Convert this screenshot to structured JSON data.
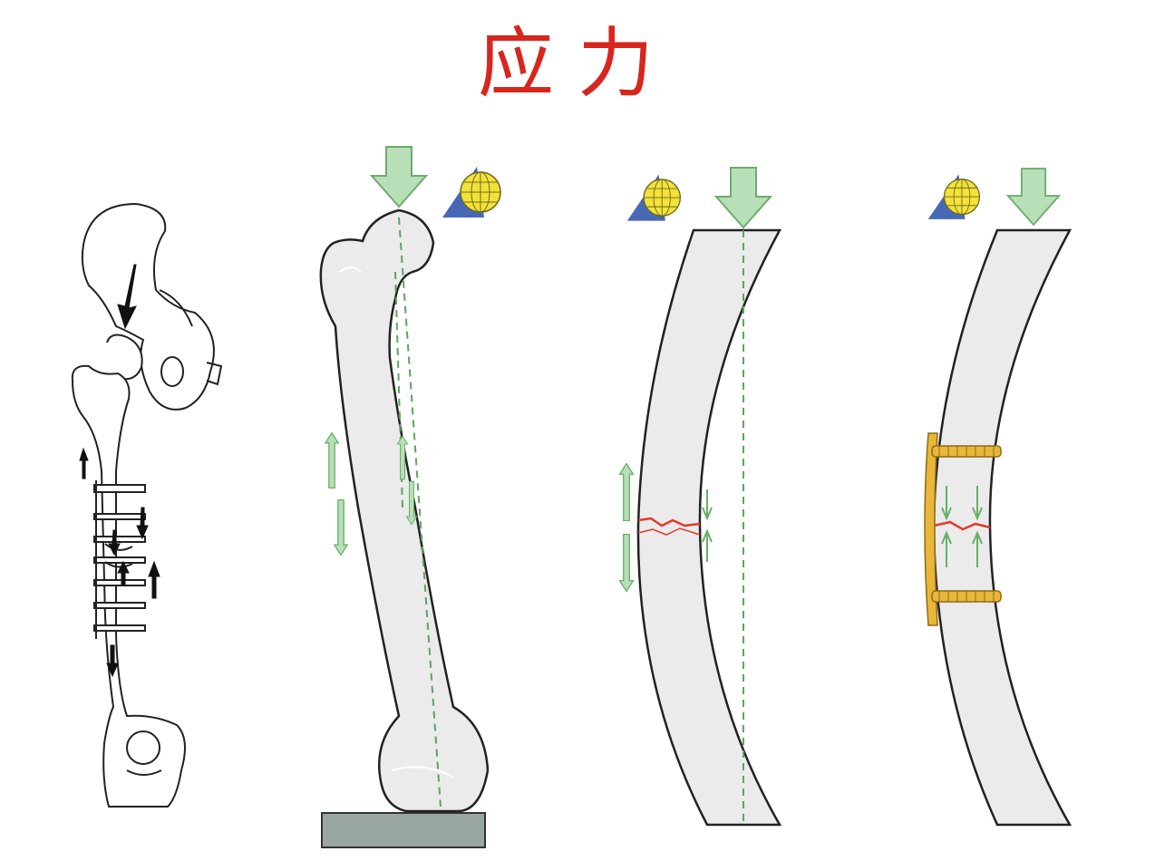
{
  "title": "应力",
  "colors": {
    "title": "#d7261e",
    "bone_fill": "#ebebeb",
    "outline": "#222222",
    "load_arrow": "#b8dfb8",
    "load_arrow_stroke": "#6fab6f",
    "stress_arrow": "#66b066",
    "axis_line": "#5ea55e",
    "fracture": "#e03a2a",
    "plate": "#e8b73a",
    "plate_stroke": "#8f6a12",
    "ground": "#9aa7a1",
    "triangle": "#4668b7",
    "globe": "#f2e23a"
  },
  "panels": [
    {
      "name": "hip-femur-plate-line-drawing",
      "icons": [
        "arrow-down-icon",
        "arrow-up-icon"
      ]
    },
    {
      "name": "femur-under-axial-load",
      "icons": [
        "load-arrow-icon",
        "globe-triangle-icon"
      ]
    },
    {
      "name": "curved-bone-with-fracture",
      "icons": [
        "load-arrow-icon",
        "globe-triangle-icon"
      ]
    },
    {
      "name": "curved-bone-with-plate-fixation",
      "icons": [
        "load-arrow-icon",
        "globe-triangle-icon"
      ]
    }
  ]
}
